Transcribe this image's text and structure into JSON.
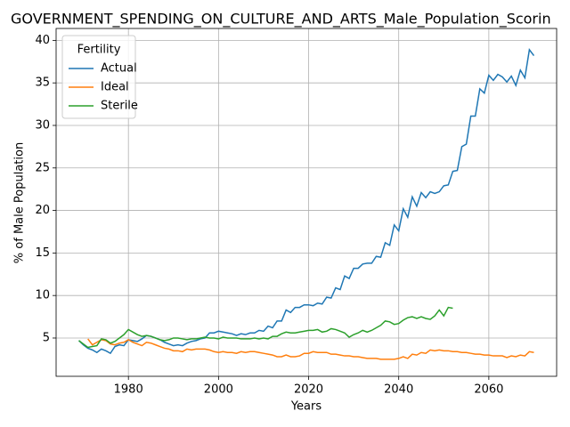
{
  "chart_data": {
    "type": "line",
    "title": "GOVERNMENT_SPENDING_ON_CULTURE_AND_ARTS_Male_Population_Scorin",
    "x_label": "Years",
    "y_label": "% of Male Population",
    "legend_title": "Fertility",
    "legend": "upper left",
    "grid": true,
    "x": [
      1969,
      1970,
      1971,
      1972,
      1973,
      1974,
      1975,
      1976,
      1977,
      1978,
      1979,
      1980,
      1981,
      1982,
      1983,
      1984,
      1985,
      1986,
      1987,
      1988,
      1989,
      1990,
      1991,
      1992,
      1993,
      1994,
      1995,
      1996,
      1997,
      1998,
      1999,
      2000,
      2001,
      2002,
      2003,
      2004,
      2005,
      2006,
      2007,
      2008,
      2009,
      2010,
      2011,
      2012,
      2013,
      2014,
      2015,
      2016,
      2017,
      2018,
      2019,
      2020,
      2021,
      2022,
      2023,
      2024,
      2025,
      2026,
      2027,
      2028,
      2029,
      2030,
      2031,
      2032,
      2033,
      2034,
      2035,
      2036,
      2037,
      2038,
      2039,
      2040,
      2041,
      2042,
      2043,
      2044,
      2045,
      2046,
      2047,
      2048,
      2049,
      2050,
      2051,
      2052,
      2053,
      2054,
      2055,
      2056,
      2057,
      2058,
      2059,
      2060,
      2061,
      2062,
      2063,
      2064,
      2065,
      2066,
      2067,
      2068,
      2069,
      2070
    ],
    "xlim": [
      1963.95,
      2075.05
    ],
    "xticks": [
      1980,
      2000,
      2020,
      2040,
      2060
    ],
    "ylim": [
      0.5,
      41.4
    ],
    "yticks": [
      5,
      10,
      15,
      20,
      25,
      30,
      35,
      40
    ],
    "series": [
      {
        "name": "Actual",
        "color": "#1f77b4",
        "values": [
          4.7,
          4.2,
          3.8,
          3.6,
          3.3,
          3.7,
          3.5,
          3.2,
          4.0,
          4.2,
          4.1,
          4.8,
          4.7,
          4.6,
          4.9,
          5.3,
          5.2,
          5.0,
          4.8,
          4.5,
          4.3,
          4.1,
          4.2,
          4.1,
          4.4,
          4.6,
          4.7,
          4.9,
          5.0,
          5.6,
          5.6,
          5.8,
          5.7,
          5.6,
          5.5,
          5.3,
          5.5,
          5.4,
          5.6,
          5.6,
          5.9,
          5.8,
          6.4,
          6.2,
          7.0,
          7.0,
          8.3,
          8.0,
          8.6,
          8.6,
          8.9,
          8.9,
          8.8,
          9.1,
          9.0,
          9.8,
          9.7,
          10.9,
          10.7,
          12.3,
          12.0,
          13.2,
          13.2,
          13.7,
          13.8,
          13.8,
          14.6,
          14.5,
          16.2,
          15.9,
          18.3,
          17.6,
          20.2,
          19.2,
          21.6,
          20.5,
          22.1,
          21.5,
          22.2,
          22.0,
          22.2,
          22.9,
          23.0,
          24.6,
          24.7,
          27.5,
          27.8,
          31.1,
          31.1,
          34.3,
          33.8,
          35.9,
          35.3,
          36.0,
          35.7,
          35.1,
          35.8,
          34.7,
          36.5,
          35.6,
          38.9,
          38.2
        ]
      },
      {
        "name": "Ideal",
        "color": "#ff7f0e",
        "values": [
          null,
          null,
          4.9,
          4.2,
          4.5,
          4.8,
          4.7,
          4.3,
          4.2,
          4.4,
          4.5,
          4.8,
          4.5,
          4.3,
          4.1,
          4.5,
          4.4,
          4.2,
          4.0,
          3.8,
          3.7,
          3.5,
          3.5,
          3.4,
          3.7,
          3.6,
          3.7,
          3.7,
          3.7,
          3.6,
          3.4,
          3.3,
          3.4,
          3.3,
          3.3,
          3.2,
          3.4,
          3.3,
          3.4,
          3.4,
          3.3,
          3.2,
          3.1,
          3.0,
          2.8,
          2.8,
          3.0,
          2.8,
          2.8,
          2.9,
          3.2,
          3.2,
          3.4,
          3.3,
          3.3,
          3.3,
          3.1,
          3.1,
          3.0,
          2.9,
          2.9,
          2.8,
          2.8,
          2.7,
          2.6,
          2.6,
          2.6,
          2.5,
          2.5,
          2.5,
          2.5,
          2.6,
          2.8,
          2.6,
          3.1,
          3.0,
          3.3,
          3.2,
          3.6,
          3.5,
          3.6,
          3.5,
          3.5,
          3.4,
          3.4,
          3.3,
          3.3,
          3.2,
          3.1,
          3.1,
          3.0,
          3.0,
          2.9,
          2.9,
          2.9,
          2.7,
          2.9,
          2.8,
          3.0,
          2.9,
          3.4,
          3.3
        ]
      },
      {
        "name": "Sterile",
        "color": "#2ca02c",
        "values": [
          4.7,
          4.3,
          3.9,
          4.0,
          4.1,
          4.9,
          4.8,
          4.4,
          4.6,
          5.0,
          5.4,
          6.0,
          5.7,
          5.4,
          5.2,
          5.3,
          5.2,
          5.0,
          4.8,
          4.7,
          4.8,
          5.0,
          5.0,
          4.9,
          4.8,
          4.9,
          4.9,
          5.0,
          5.1,
          5.0,
          5.0,
          4.9,
          5.1,
          5.0,
          5.0,
          5.0,
          4.9,
          4.9,
          4.9,
          5.0,
          4.9,
          5.0,
          4.9,
          5.2,
          5.2,
          5.5,
          5.7,
          5.6,
          5.6,
          5.7,
          5.8,
          5.9,
          5.9,
          6.0,
          5.7,
          5.8,
          6.1,
          6.0,
          5.8,
          5.6,
          5.1,
          5.4,
          5.6,
          5.9,
          5.7,
          5.9,
          6.2,
          6.5,
          7.0,
          6.9,
          6.6,
          6.7,
          7.1,
          7.4,
          7.5,
          7.3,
          7.5,
          7.3,
          7.2,
          7.6,
          8.3,
          7.6,
          8.6,
          8.5,
          null,
          null,
          null,
          null,
          null,
          null,
          null,
          null,
          null,
          null,
          null,
          null,
          null,
          null,
          null,
          null,
          null,
          null
        ]
      }
    ]
  }
}
